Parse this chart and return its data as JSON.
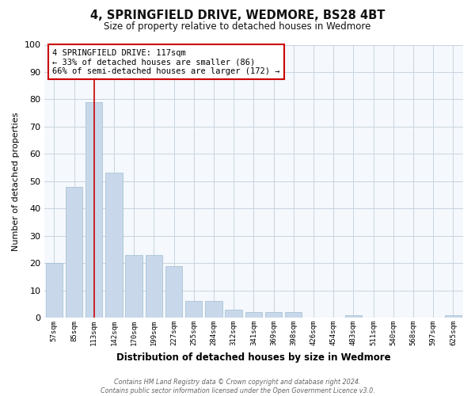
{
  "title": "4, SPRINGFIELD DRIVE, WEDMORE, BS28 4BT",
  "subtitle": "Size of property relative to detached houses in Wedmore",
  "xlabel": "Distribution of detached houses by size in Wedmore",
  "ylabel": "Number of detached properties",
  "bar_labels": [
    "57sqm",
    "85sqm",
    "113sqm",
    "142sqm",
    "170sqm",
    "199sqm",
    "227sqm",
    "255sqm",
    "284sqm",
    "312sqm",
    "341sqm",
    "369sqm",
    "398sqm",
    "426sqm",
    "454sqm",
    "483sqm",
    "511sqm",
    "540sqm",
    "568sqm",
    "597sqm",
    "625sqm"
  ],
  "bar_values": [
    20,
    48,
    79,
    53,
    23,
    23,
    19,
    6,
    6,
    3,
    2,
    2,
    2,
    0,
    0,
    1,
    0,
    0,
    0,
    0,
    1
  ],
  "bar_color": "#c8d8ea",
  "bar_edge_color": "#a0bcd0",
  "bar_width": 0.85,
  "vline_x_index": 2,
  "vline_color": "#cc0000",
  "ylim": [
    0,
    100
  ],
  "yticks": [
    0,
    10,
    20,
    30,
    40,
    50,
    60,
    70,
    80,
    90,
    100
  ],
  "grid_color": "#c8d4e0",
  "annotation_title": "4 SPRINGFIELD DRIVE: 117sqm",
  "annotation_line1": "← 33% of detached houses are smaller (86)",
  "annotation_line2": "66% of semi-detached houses are larger (172) →",
  "annotation_box_facecolor": "#ffffff",
  "annotation_box_edgecolor": "#cc0000",
  "footer_line1": "Contains HM Land Registry data © Crown copyright and database right 2024.",
  "footer_line2": "Contains public sector information licensed under the Open Government Licence v3.0.",
  "fig_facecolor": "#ffffff",
  "plot_facecolor": "#f5f8fc"
}
